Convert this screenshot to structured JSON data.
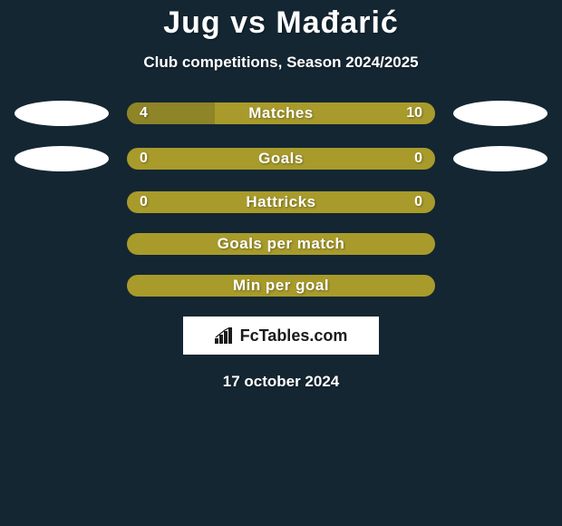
{
  "colors": {
    "background": "#142632",
    "accent": "#a89b2b",
    "accent_dim": "#8e8428",
    "text": "#ffffff",
    "logo_bg": "#ffffff",
    "logo_text": "#1a1a1a",
    "oval_color": "#ffffff"
  },
  "typography": {
    "title_fontsize": 34,
    "subtitle_fontsize": 17,
    "bar_label_fontsize": 17,
    "bar_value_fontsize": 16,
    "date_fontsize": 17,
    "logo_fontsize": 18
  },
  "header": {
    "title": "Jug vs Mađarić",
    "subtitle": "Club competitions, Season 2024/2025"
  },
  "bars": [
    {
      "label": "Matches",
      "left_value": "4",
      "right_value": "10",
      "left_fraction": 0.286,
      "right_fraction": 0.714,
      "show_ovals": true
    },
    {
      "label": "Goals",
      "left_value": "0",
      "right_value": "0",
      "left_fraction": 0.0,
      "right_fraction": 0.0,
      "show_ovals": true
    },
    {
      "label": "Hattricks",
      "left_value": "0",
      "right_value": "0",
      "left_fraction": 0.0,
      "right_fraction": 0.0,
      "show_ovals": false
    },
    {
      "label": "Goals per match",
      "left_value": "",
      "right_value": "",
      "left_fraction": 0.0,
      "right_fraction": 0.0,
      "show_ovals": false
    },
    {
      "label": "Min per goal",
      "left_value": "",
      "right_value": "",
      "left_fraction": 0.0,
      "right_fraction": 0.0,
      "show_ovals": false
    }
  ],
  "logo": {
    "text": "FcTables.com"
  },
  "date": "17 october 2024"
}
